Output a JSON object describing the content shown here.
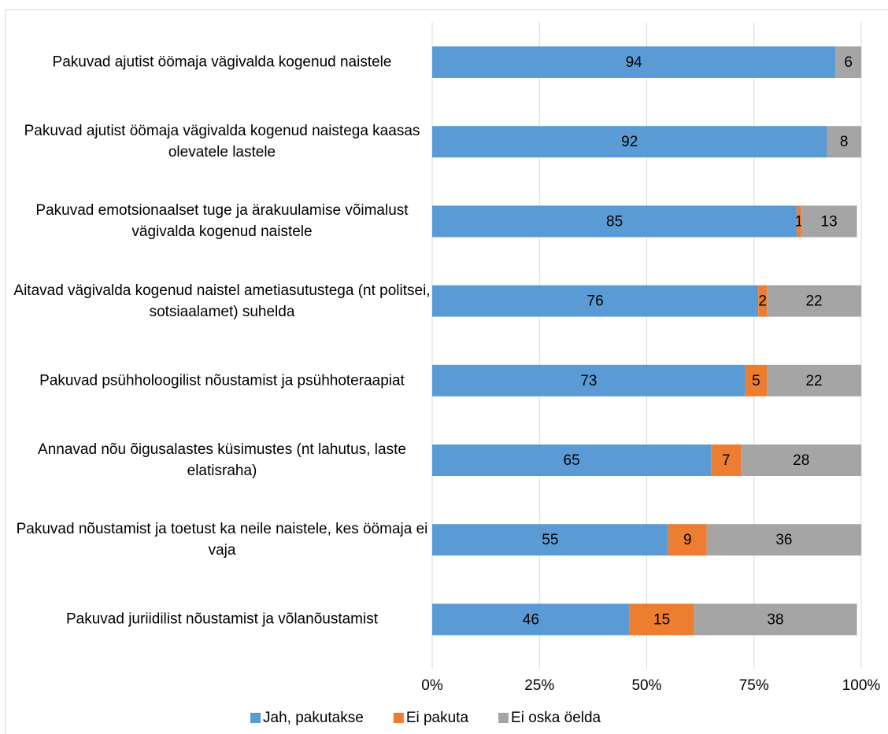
{
  "chart_data": {
    "type": "stacked_bar_horizontal",
    "categories": [
      "Pakuvad ajutist öömaja vägivalda kogenud naistele",
      "Pakuvad ajutist öömaja vägivalda kogenud naistega kaasas olevatele lastele",
      "Pakuvad emotsionaalset tuge ja ärakuulamise võimalust vägivalda kogenud naistele",
      "Aitavad vägivalda kogenud naistel ametiasutustega (nt politsei, sotsiaalamet) suhelda",
      "Pakuvad psühholoogilist nõustamist ja psühhoteraapiat",
      "Annavad nõu õigusalastes küsimustes (nt lahutus, laste elatisraha)",
      "Pakuvad nõustamist ja toetust ka neile naistele, kes öömaja ei vaja",
      "Pakuvad juriidilist nõustamist ja võlanõustamist"
    ],
    "series": [
      {
        "name": "Jah, pakutakse",
        "color": "#5b9bd5",
        "values": [
          94,
          92,
          85,
          76,
          73,
          65,
          55,
          46
        ]
      },
      {
        "name": "Ei pakuta",
        "color": "#ed7d31",
        "values": [
          null,
          null,
          1,
          2,
          5,
          7,
          9,
          15
        ]
      },
      {
        "name": "Ei oska öelda",
        "color": "#a5a5a5",
        "values": [
          6,
          8,
          13,
          22,
          22,
          28,
          36,
          38
        ]
      }
    ],
    "xlim": [
      0,
      100
    ],
    "xticks": [
      {
        "value": 0,
        "label": "0%"
      },
      {
        "value": 25,
        "label": "25%"
      },
      {
        "value": 50,
        "label": "50%"
      },
      {
        "value": 75,
        "label": "75%"
      },
      {
        "value": 100,
        "label": "100%"
      }
    ],
    "grid": true,
    "legend": "bottom"
  }
}
